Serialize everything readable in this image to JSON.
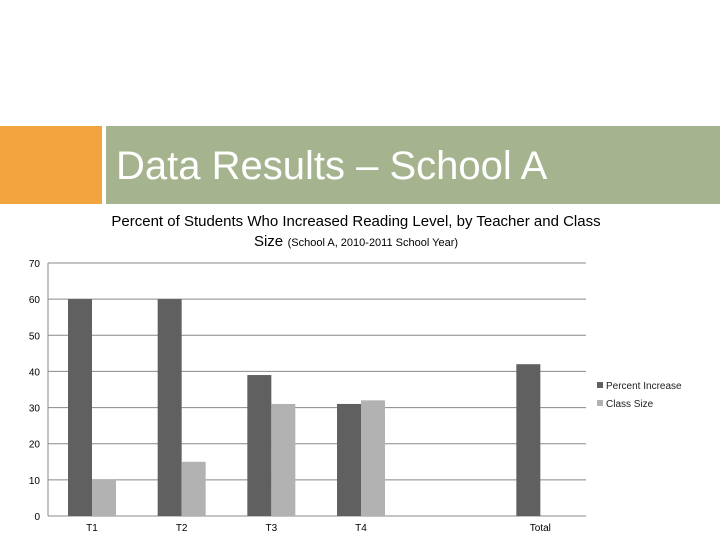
{
  "slide": {
    "title": "Data Results – School A"
  },
  "colors": {
    "accent_orange": "#f2a43e",
    "title_bar_green": "#a5b48e",
    "series_dark": "#606060",
    "series_light": "#b2b2b2",
    "grid": "#888888"
  },
  "chart_data": {
    "type": "bar",
    "title_line1": "Percent of Students Who Increased Reading Level, by Teacher and Class",
    "title_line2_main": "Size",
    "title_line2_sub": "(School A, 2010-2011 School Year)",
    "xlabel": "",
    "ylabel": "",
    "categories": [
      "T1",
      "T2",
      "T3",
      "T4",
      "",
      "Total"
    ],
    "series": [
      {
        "name": "Percent Increase",
        "values": [
          60,
          60,
          39,
          31,
          null,
          42
        ]
      },
      {
        "name": "Class Size",
        "values": [
          10,
          15,
          31,
          32,
          null,
          null
        ]
      }
    ],
    "ylim": [
      0,
      70
    ],
    "yticks": [
      0,
      10,
      20,
      30,
      40,
      50,
      60,
      70
    ],
    "grid": true,
    "legend_position": "right"
  }
}
